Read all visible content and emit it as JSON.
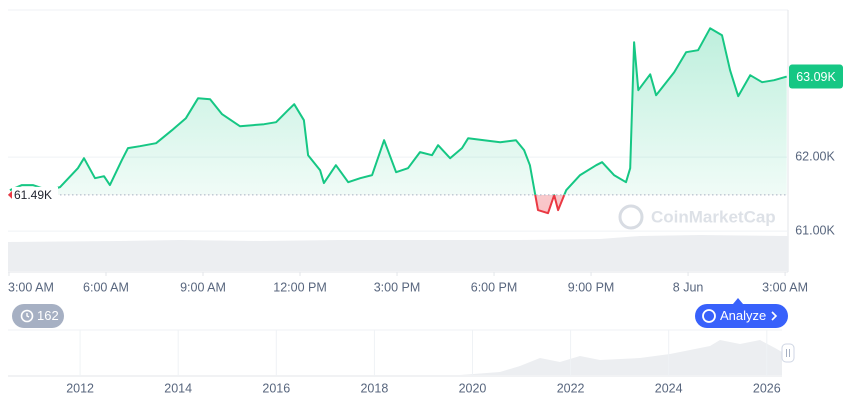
{
  "chart_data": [
    {
      "type": "line",
      "x": [
        3.03,
        3.4,
        3.74,
        4.21,
        4.58,
        5.13,
        5.32,
        5.66,
        5.94,
        6.12,
        6.49,
        6.68,
        7.05,
        7.55,
        8.04,
        8.47,
        8.85,
        9.22,
        9.59,
        10.14,
        10.52,
        10.89,
        11.26,
        11.63,
        11.82,
        12.12,
        12.25,
        12.62,
        12.74,
        13.11,
        13.49,
        13.86,
        14.23,
        14.6,
        14.97,
        15.34,
        15.71,
        16.08,
        16.27,
        16.64,
        17.01,
        17.2,
        17.69,
        18.19,
        18.68,
        18.93,
        19.11,
        19.36,
        19.67,
        19.86,
        19.98,
        20.23,
        20.66,
        21.16,
        21.34,
        21.71,
        22.08,
        22.21,
        22.33,
        22.46,
        22.83,
        23.01,
        23.57,
        23.94,
        24.31,
        24.68,
        25.05,
        25.3,
        25.55,
        25.92,
        26.29,
        26.66,
        27.05
      ],
      "series": [
        {
          "name": null,
          "color": "#16c784",
          "down_color": "#ea3943",
          "values": [
            61554,
            61622,
            61622,
            61554,
            61595,
            61851,
            61986,
            61716,
            61743,
            61622,
            61959,
            62122,
            62149,
            62189,
            62365,
            62527,
            62797,
            62784,
            62581,
            62419,
            62432,
            62446,
            62473,
            62635,
            62716,
            62500,
            62027,
            61824,
            61649,
            61892,
            61662,
            61716,
            61757,
            62230,
            61797,
            61851,
            62068,
            62027,
            62162,
            61986,
            62122,
            62257,
            62230,
            62203,
            62230,
            62095,
            61892,
            61284,
            61243,
            61487,
            61284,
            61554,
            61757,
            61892,
            61932,
            61757,
            61662,
            61851,
            63554,
            62905,
            63121,
            62838,
            63148,
            63419,
            63446,
            63743,
            63649,
            63175,
            62824,
            63108,
            63014,
            63041,
            63090
          ]
        }
      ],
      "xlim": [
        2.97,
        27.09
      ],
      "xticks": [
        {
          "value": 3,
          "label": "3:00 AM"
        },
        {
          "value": 6,
          "label": "6:00 AM"
        },
        {
          "value": 9,
          "label": "9:00 AM"
        },
        {
          "value": 12,
          "label": "12:00 PM"
        },
        {
          "value": 15,
          "label": "3:00 PM"
        },
        {
          "value": 18,
          "label": "6:00 PM"
        },
        {
          "value": 21,
          "label": "9:00 PM"
        },
        {
          "value": 24,
          "label": "8 Jun"
        },
        {
          "value": 27,
          "label": "3:00 AM"
        }
      ],
      "ylim": [
        60880,
        63990
      ],
      "yticks": [
        {
          "value": 61000,
          "label": "61.00K"
        },
        {
          "value": 62000,
          "label": "62.00K"
        }
      ],
      "baseline": {
        "value": 61490,
        "label": "61.49K"
      },
      "last_price": {
        "value": 63090,
        "label": "63.09K"
      },
      "grid": true
    },
    {
      "type": "navigator",
      "xlim": [
        2010.53,
        2026.31
      ],
      "xticks": [
        2012,
        2014,
        2016,
        2018,
        2020,
        2022,
        2024,
        2026
      ]
    }
  ],
  "ui": {
    "events_badge": 162,
    "analyze_button": "Analyze",
    "watermark": "CoinMarketCap"
  }
}
